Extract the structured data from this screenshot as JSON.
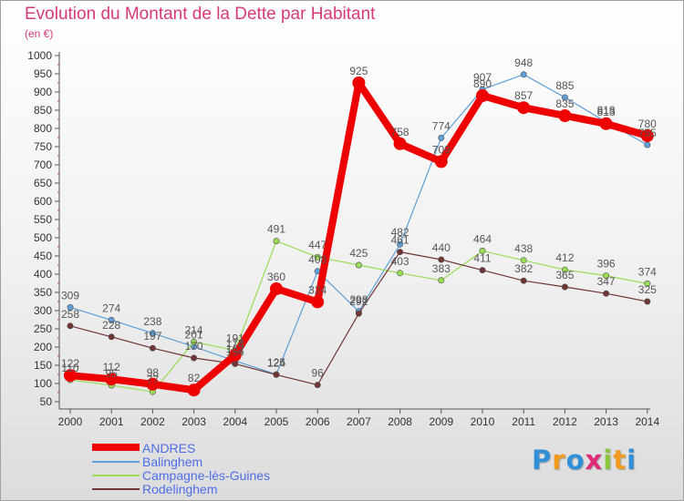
{
  "header": {
    "title": "Evolution du Montant de la Dette par Habitant",
    "unit": "(en €)"
  },
  "chart_data": {
    "type": "line",
    "title": "Evolution du Montant de la Dette par Habitant",
    "ylabel": "(en €)",
    "xlabel": "",
    "categories": [
      "2000",
      "2001",
      "2002",
      "2003",
      "2004",
      "2005",
      "2006",
      "2007",
      "2008",
      "2009",
      "2010",
      "2011",
      "2012",
      "2013",
      "2014"
    ],
    "yticks": [
      50,
      100,
      150,
      200,
      250,
      300,
      350,
      400,
      450,
      500,
      550,
      600,
      650,
      700,
      750,
      800,
      850,
      900,
      950,
      1000
    ],
    "ylim": [
      50,
      1000
    ],
    "grid": false,
    "legend_position": "bottom-left",
    "series": [
      {
        "name": "ANDRES",
        "color": "#ee0000",
        "values": [
          122,
          112,
          98,
          82,
          178,
          360,
          324,
          925,
          758,
          709,
          890,
          857,
          835,
          813,
          780
        ]
      },
      {
        "name": "Balinghem",
        "color": "#5f9ed8",
        "values": [
          309,
          274,
          238,
          201,
          162,
          125,
          408,
          298,
          482,
          774,
          907,
          948,
          885,
          818,
          755
        ]
      },
      {
        "name": "Campagne-lès-Guines",
        "color": "#99dd55",
        "values": [
          110,
          95,
          77,
          214,
          191,
          491,
          447,
          425,
          403,
          383,
          464,
          438,
          412,
          396,
          374
        ]
      },
      {
        "name": "Rodelinghem",
        "color": "#703535",
        "values": [
          258,
          228,
          197,
          170,
          154,
          124,
          96,
          292,
          461,
          440,
          411,
          382,
          365,
          347,
          325
        ]
      }
    ]
  },
  "logo": {
    "text": "Proxiti",
    "letters": [
      "P",
      "r",
      "o",
      "x",
      "i",
      "t",
      "i"
    ],
    "colors": [
      "#2f8fd8",
      "#f09a20",
      "#2f8fd8",
      "#e02a7a",
      "#8cc63f",
      "#f09a20",
      "#2f8fd8"
    ]
  }
}
